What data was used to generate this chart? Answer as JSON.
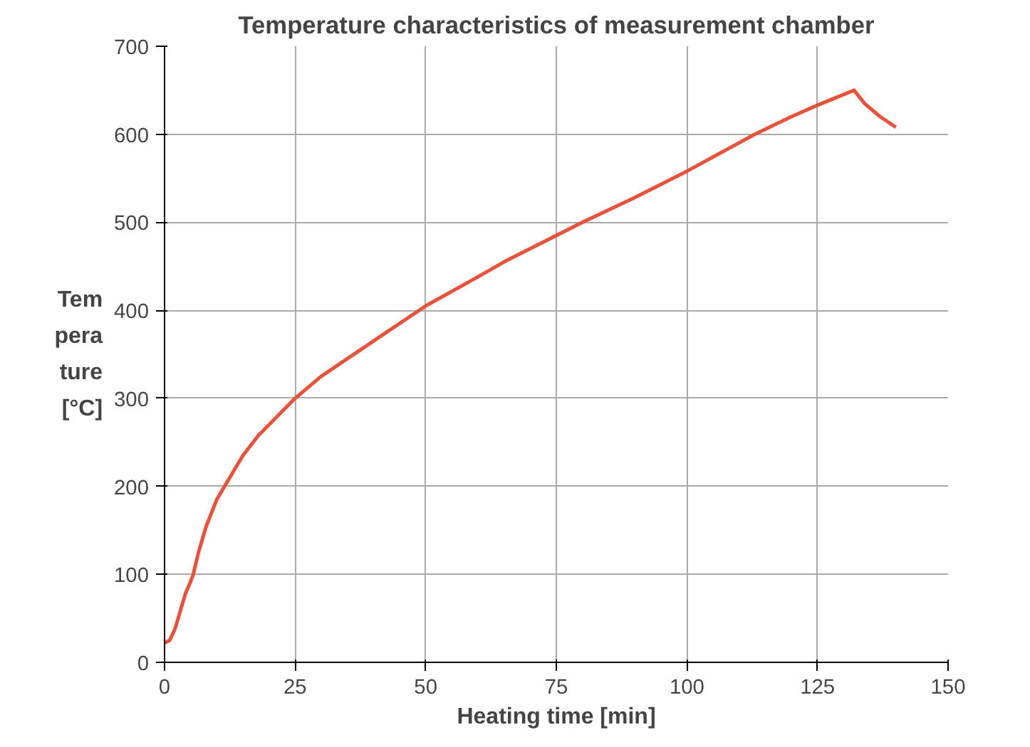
{
  "chart_data": {
    "type": "line",
    "title": "Temperature characteristics of measurement chamber",
    "xlabel": "Heating time [min]",
    "ylabel": "Tem\npera\nture\n[°C]",
    "x": [
      0,
      1,
      2,
      3,
      4,
      5,
      5.5,
      6.5,
      8,
      10,
      11.5,
      13,
      15,
      18,
      20,
      25,
      30,
      35,
      40,
      50,
      60,
      65,
      70,
      80,
      90,
      95,
      100,
      113,
      120,
      125,
      132,
      134,
      137,
      140
    ],
    "series": [
      {
        "color": "#e8513a",
        "values": [
          22,
          25,
          38,
          58,
          78,
          92,
          100,
          125,
          155,
          185,
          200,
          215,
          235,
          258,
          270,
          300,
          325,
          345,
          365,
          405,
          438,
          455,
          470,
          500,
          528,
          543,
          558,
          600,
          620,
          633,
          650,
          635,
          620,
          608
        ]
      }
    ],
    "xlim": [
      0,
      150
    ],
    "ylim": [
      0,
      700
    ],
    "xticks": [
      0,
      25,
      50,
      75,
      100,
      125,
      150
    ],
    "yticks": [
      0,
      100,
      200,
      300,
      400,
      500,
      600,
      700
    ],
    "grid": true,
    "line_style": "solid"
  }
}
